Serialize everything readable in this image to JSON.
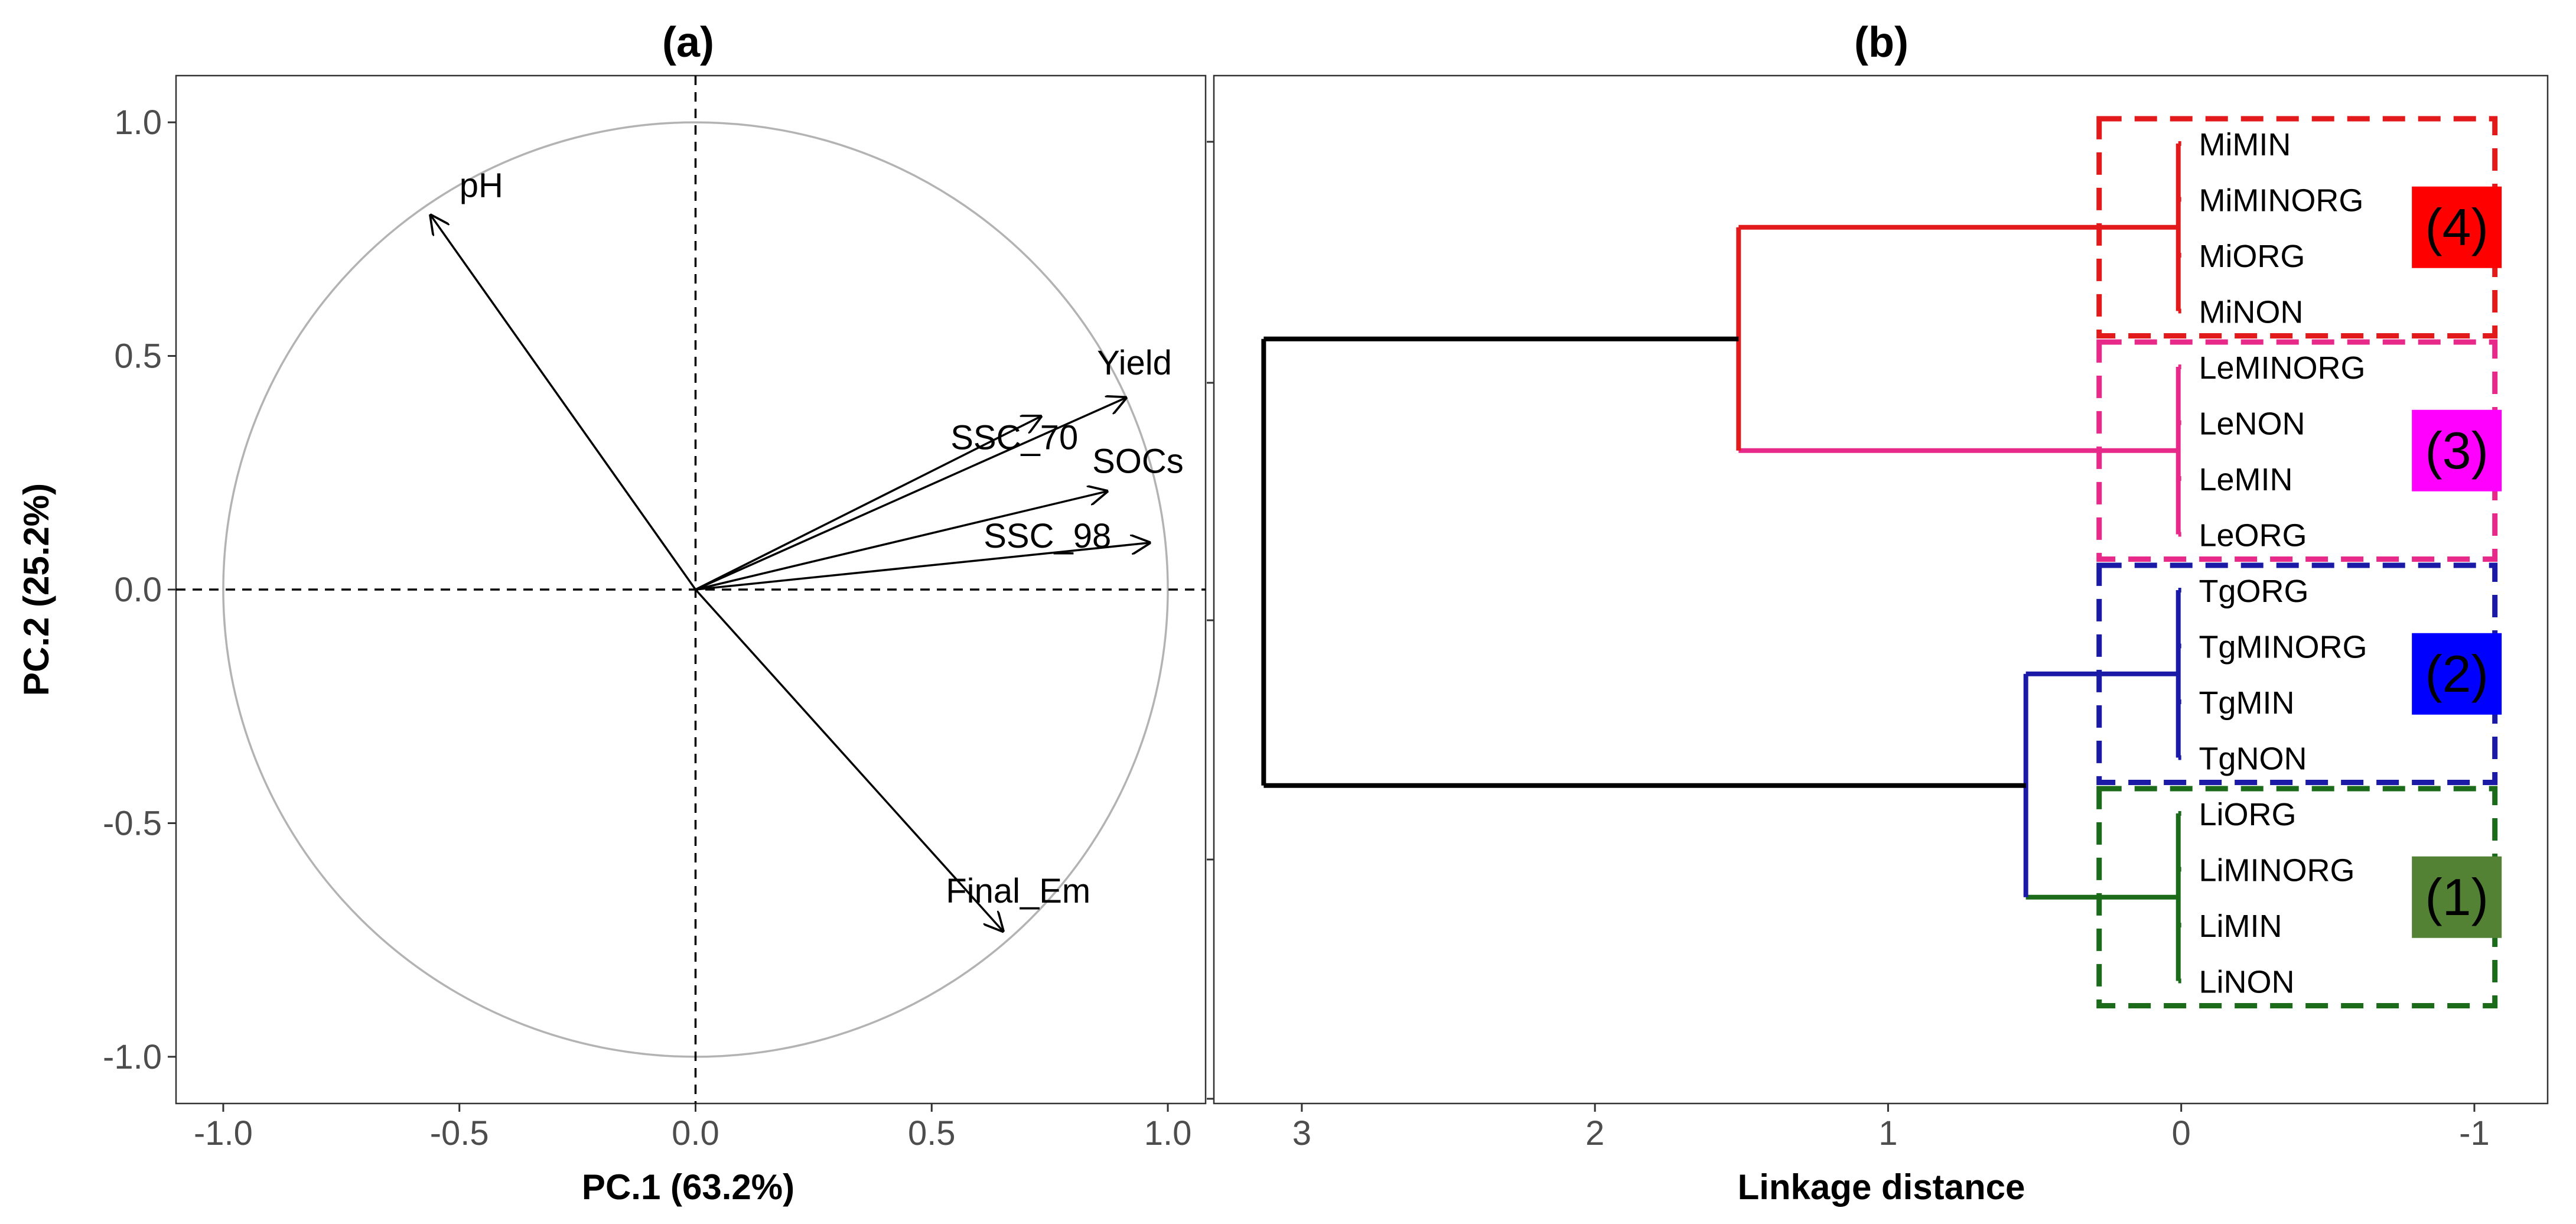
{
  "chart_data": [
    {
      "type": "biplot",
      "panel_label": "(a)",
      "xlabel": "PC.1 (63.2%)",
      "ylabel": "PC.2 (25.2%)",
      "xlim": [
        -1.1,
        1.08
      ],
      "ylim": [
        -1.1,
        1.1
      ],
      "xticks": [
        -1.0,
        -0.5,
        0.0,
        0.5,
        1.0
      ],
      "yticks": [
        -1.0,
        -0.5,
        0.0,
        0.5,
        1.0
      ],
      "x_tick_labels": [
        "-1.0",
        "-0.5",
        "0.0",
        "0.5",
        "1.0"
      ],
      "y_tick_labels": [
        "-1.0",
        "-0.5",
        "0.0",
        "0.5",
        "1.0"
      ],
      "correlation_circle_radius": 1.0,
      "circle_color": "#b3b3b3",
      "vectors": [
        {
          "label": "pH",
          "x": -0.56,
          "y": 0.8,
          "label_x": -0.5,
          "label_y": 0.84
        },
        {
          "label": "Yield",
          "x": 0.91,
          "y": 0.41,
          "label_x": 0.85,
          "label_y": 0.46
        },
        {
          "label": "SSC_70",
          "x": 0.73,
          "y": 0.37,
          "label_x": 0.54,
          "label_y": 0.3
        },
        {
          "label": "SOCs",
          "x": 0.87,
          "y": 0.21,
          "label_x": 0.84,
          "label_y": 0.25
        },
        {
          "label": "SSC_98",
          "x": 0.96,
          "y": 0.1,
          "label_x": 0.61,
          "label_y": 0.09
        },
        {
          "label": "Final_Em",
          "x": 0.65,
          "y": -0.73,
          "label_x": 0.53,
          "label_y": -0.67
        }
      ]
    },
    {
      "type": "dendrogram",
      "panel_label": "(b)",
      "xlabel": "Linkage distance",
      "xlim": [
        3.3,
        -1.25
      ],
      "xticks": [
        3,
        2,
        1,
        0,
        -1
      ],
      "x_tick_labels": [
        "3",
        "2",
        "1",
        "0",
        "-1"
      ],
      "leaves": [
        "MiMIN",
        "MiMINORG",
        "MiORG",
        "MiNON",
        "LeMINORG",
        "LeNON",
        "LeMIN",
        "LeORG",
        "TgORG",
        "TgMINORG",
        "TgMIN",
        "TgNON",
        "LiORG",
        "LiMINORG",
        "LiMIN",
        "LiNON"
      ],
      "clusters": [
        {
          "label": "(4)",
          "color": "#e31a1c",
          "leaf_range": [
            0,
            3
          ],
          "merge_height": 0.01,
          "box_fill": "#ff0000"
        },
        {
          "label": "(3)",
          "color": "#e7298a",
          "leaf_range": [
            4,
            7
          ],
          "merge_height": 0.01,
          "box_fill": "#ff00ff"
        },
        {
          "label": "(2)",
          "color": "#1a1aa6",
          "leaf_range": [
            8,
            11
          ],
          "merge_height": 0.01,
          "box_fill": "#0000ff"
        },
        {
          "label": "(1)",
          "color": "#1b6b1b",
          "leaf_range": [
            12,
            15
          ],
          "merge_height": 0.01,
          "box_fill": "#548235"
        }
      ],
      "merges": [
        {
          "left": "(4)",
          "right": "(3)",
          "height": 1.51,
          "color": "#e31a1c",
          "right_color": "#e7298a"
        },
        {
          "left": "(2)",
          "right": "(1)",
          "height": 0.53,
          "color": "#1a1aa6",
          "right_color": "#1b6b1b"
        },
        {
          "left": "(4)+(3)",
          "right": "(2)+(1)",
          "height": 3.13,
          "color": "#000000"
        }
      ]
    }
  ]
}
